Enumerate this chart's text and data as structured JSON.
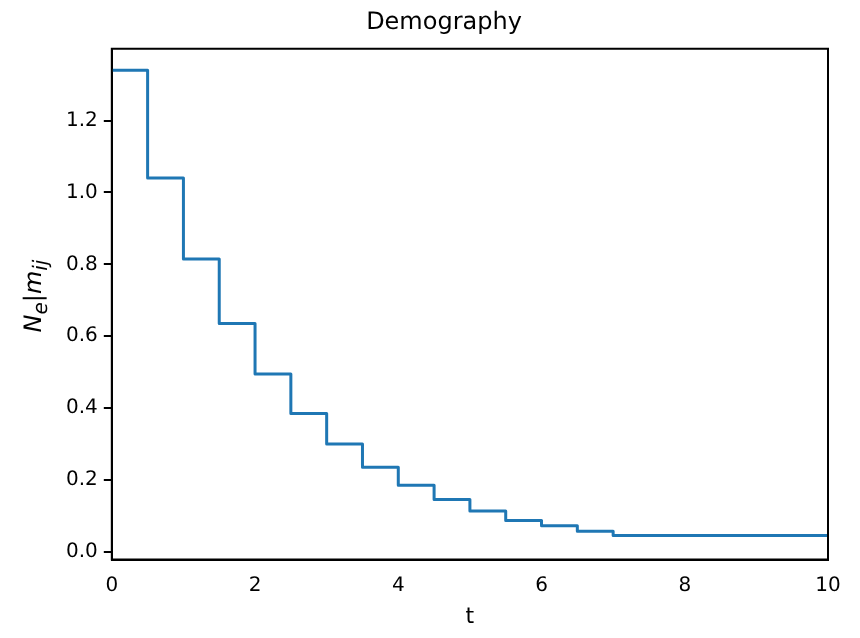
{
  "chart_data": {
    "type": "step",
    "title": "Demography",
    "xlabel": "t",
    "ylabel": "N$_{e}$|m$_{ij}$",
    "x": [
      0,
      0.5,
      1,
      1.5,
      2,
      2.5,
      3,
      3.5,
      4,
      4.5,
      5,
      5.5,
      6,
      6.5,
      7,
      10
    ],
    "series": [
      {
        "color": "#1f77b4",
        "values": [
          1.34,
          1.04,
          0.815,
          0.635,
          0.495,
          0.385,
          0.3,
          0.235,
          0.185,
          0.145,
          0.113,
          0.087,
          0.072,
          0.057,
          0.045,
          0.045
        ]
      }
    ],
    "xlim": [
      0,
      10
    ],
    "xticks": [
      0,
      2,
      4,
      6,
      8,
      10
    ],
    "ylim": [
      -0.022,
      1.4
    ],
    "yticks": [
      {
        "value": 0,
        "label": "0.0"
      },
      {
        "value": 0.2,
        "label": "0.2"
      },
      {
        "value": 0.4,
        "label": "0.4"
      },
      {
        "value": 0.6,
        "label": "0.6"
      },
      {
        "value": 0.8,
        "label": "0.8"
      },
      {
        "value": 1.0,
        "label": "1.0"
      },
      {
        "value": 1.2,
        "label": "1.2"
      }
    ],
    "grid": false,
    "legend": false
  }
}
